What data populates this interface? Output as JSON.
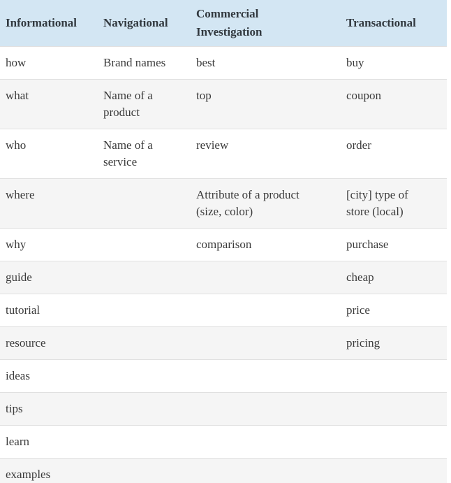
{
  "colors": {
    "header-bg": "#d3e6f3",
    "header-text": "#32393f",
    "body-text": "#3b3b3b",
    "row-bg": "#ffffff",
    "stripe-bg": "#f5f5f5",
    "border": "#e0e0e0"
  },
  "table": {
    "columns": [
      "Informational",
      "Navigational",
      "Commercial Investigation",
      "Transactional"
    ],
    "rows": [
      [
        "how",
        "Brand names",
        "best",
        "buy"
      ],
      [
        "what",
        "Name of a product",
        "top",
        "coupon"
      ],
      [
        "who",
        "Name of a service",
        "review",
        "order"
      ],
      [
        "where",
        "",
        "Attribute of a product (size, color)",
        "[city] type of store (local)"
      ],
      [
        "why",
        "",
        "comparison",
        "purchase"
      ],
      [
        "guide",
        "",
        "",
        "cheap"
      ],
      [
        "tutorial",
        "",
        "",
        "price"
      ],
      [
        "resource",
        "",
        "",
        "pricing"
      ],
      [
        "ideas",
        "",
        "",
        ""
      ],
      [
        "tips",
        "",
        "",
        ""
      ],
      [
        "learn",
        "",
        "",
        ""
      ],
      [
        "examples",
        "",
        "",
        ""
      ]
    ]
  }
}
